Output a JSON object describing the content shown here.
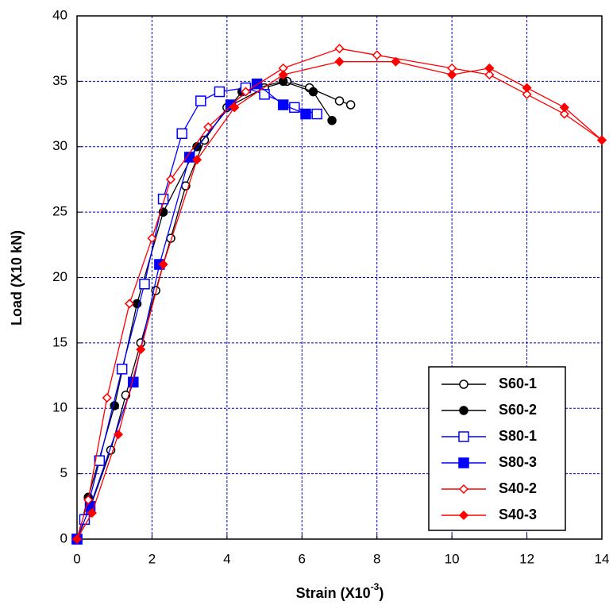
{
  "chart_data": {
    "type": "line",
    "xlabel": {
      "text": "Strain (X10",
      "superscript": "-3",
      "close": ")"
    },
    "ylabel": "Load (X10 kN)",
    "xlim": [
      0,
      14
    ],
    "ylim": [
      0,
      40
    ],
    "xticks": [
      0,
      2,
      4,
      6,
      8,
      10,
      12,
      14
    ],
    "yticks": [
      0,
      5,
      10,
      15,
      20,
      25,
      30,
      35,
      40
    ],
    "grid": true,
    "legend": "lower right",
    "series": [
      {
        "name": "S60-1",
        "color": "#000000",
        "marker": "circle-open",
        "x": [
          0,
          0.3,
          0.9,
          1.3,
          1.7,
          2.1,
          2.5,
          2.9,
          3.4,
          4,
          5,
          5.6,
          6.2,
          7,
          7.3
        ],
        "values": [
          0,
          2,
          6.8,
          11,
          15,
          19,
          23,
          27,
          30.5,
          33,
          34.5,
          35,
          34.5,
          33.5,
          33.2
        ]
      },
      {
        "name": "S60-2",
        "color": "#000000",
        "marker": "circle-filled",
        "x": [
          0,
          0.3,
          1,
          1.6,
          2.3,
          3.2,
          4.4,
          5.5,
          6.3,
          6.8
        ],
        "values": [
          0,
          3.2,
          10.2,
          18,
          25,
          30,
          34.2,
          35,
          34.2,
          32
        ]
      },
      {
        "name": "S80-1",
        "color": "#0000ff",
        "marker": "square-open",
        "x": [
          0,
          0.2,
          0.6,
          1.2,
          1.8,
          2.3,
          2.8,
          3.3,
          3.8,
          4.5,
          5,
          5.8,
          6.4
        ],
        "values": [
          0,
          1.5,
          6,
          13,
          19.5,
          26,
          31,
          33.5,
          34.2,
          34.5,
          34,
          33,
          32.5
        ]
      },
      {
        "name": "S80-3",
        "color": "#0000ff",
        "marker": "square-filled",
        "x": [
          0,
          0.35,
          1.5,
          2.2,
          3,
          4.1,
          4.8,
          5.5,
          6.1
        ],
        "values": [
          0,
          2.5,
          12,
          21,
          29.2,
          33.2,
          34.8,
          33.2,
          32.5
        ]
      },
      {
        "name": "S40-2",
        "color": "#ff0000",
        "marker": "diamond-open",
        "x": [
          0,
          0.3,
          0.8,
          1.4,
          2,
          2.5,
          3.5,
          4.5,
          5.5,
          7,
          8,
          10,
          11,
          12,
          13,
          14
        ],
        "values": [
          0,
          3,
          10.8,
          18,
          23,
          27.5,
          31.5,
          34.2,
          36,
          37.5,
          37,
          36,
          35.5,
          34,
          32.5,
          30.5
        ]
      },
      {
        "name": "S40-3",
        "color": "#ff0000",
        "marker": "diamond-filled",
        "x": [
          0,
          0.4,
          1.1,
          1.7,
          2.3,
          3.2,
          4.2,
          5.5,
          7,
          8.5,
          10,
          11,
          12,
          13,
          14
        ],
        "values": [
          0,
          2,
          8,
          14.5,
          21,
          29,
          33,
          35.5,
          36.5,
          36.5,
          35.5,
          36,
          34.5,
          33,
          30.5
        ]
      }
    ]
  }
}
